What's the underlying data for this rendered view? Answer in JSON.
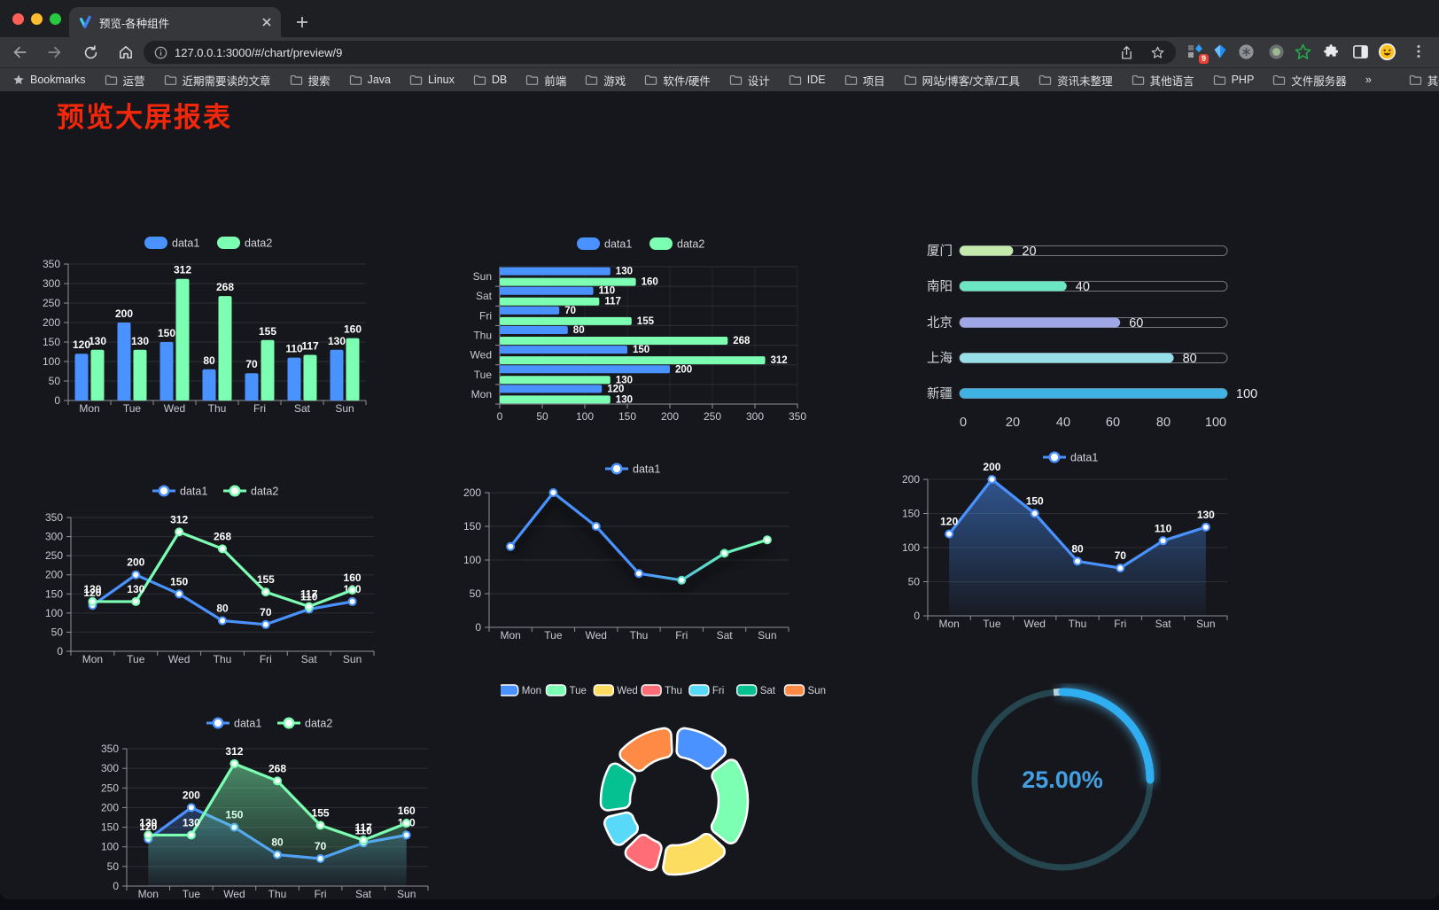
{
  "browser": {
    "traffic_lights": [
      "#ff5f57",
      "#febc2e",
      "#28c840"
    ],
    "tab": {
      "title": "预览-各种组件"
    },
    "url": "127.0.0.1:3000/#/chart/preview/9",
    "extensions_badge": "9",
    "bookmarks": [
      {
        "icon": "star",
        "label": "Bookmarks"
      },
      {
        "icon": "folder",
        "label": "运营"
      },
      {
        "icon": "folder",
        "label": "近期需要读的文章"
      },
      {
        "icon": "folder",
        "label": "搜索"
      },
      {
        "icon": "folder",
        "label": "Java"
      },
      {
        "icon": "folder",
        "label": "Linux"
      },
      {
        "icon": "folder",
        "label": "DB"
      },
      {
        "icon": "folder",
        "label": "前端"
      },
      {
        "icon": "folder",
        "label": "游戏"
      },
      {
        "icon": "folder",
        "label": "软件/硬件"
      },
      {
        "icon": "folder",
        "label": "设计"
      },
      {
        "icon": "folder",
        "label": "IDE"
      },
      {
        "icon": "folder",
        "label": "项目"
      },
      {
        "icon": "folder",
        "label": "网站/博客/文章/工具"
      },
      {
        "icon": "folder",
        "label": "资讯未整理"
      },
      {
        "icon": "folder",
        "label": "其他语言"
      },
      {
        "icon": "folder",
        "label": "PHP"
      },
      {
        "icon": "folder",
        "label": "文件服务器"
      },
      {
        "icon": "none",
        "label": "»"
      },
      {
        "icon": "folder",
        "label": "其他书签",
        "separator_before": true
      }
    ]
  },
  "page": {
    "title": "预览大屏报表",
    "title_color": "#f4270b"
  },
  "chart_data": [
    {
      "type": "bar",
      "legend_position": "top",
      "grid": true,
      "categories": [
        "Mon",
        "Tue",
        "Wed",
        "Thu",
        "Fri",
        "Sat",
        "Sun"
      ],
      "series": [
        {
          "name": "data1",
          "color": "#4992ff",
          "values": [
            120,
            200,
            150,
            80,
            70,
            110,
            130
          ]
        },
        {
          "name": "data2",
          "color": "#7cffb2",
          "values": [
            130,
            130,
            312,
            268,
            155,
            117,
            160
          ]
        }
      ],
      "ylim": [
        0,
        350
      ],
      "ytick_step": 50
    },
    {
      "type": "bar-horizontal",
      "legend_position": "top",
      "categories": [
        "Mon",
        "Tue",
        "Wed",
        "Thu",
        "Fri",
        "Sat",
        "Sun"
      ],
      "series": [
        {
          "name": "data1",
          "color": "#4992ff",
          "values": [
            120,
            200,
            150,
            80,
            70,
            110,
            130
          ]
        },
        {
          "name": "data2",
          "color": "#7cffb2",
          "values": [
            130,
            130,
            312,
            268,
            155,
            117,
            160
          ]
        }
      ],
      "xlim": [
        0,
        350
      ],
      "xtick_step": 50
    },
    {
      "type": "progress-bars",
      "items": [
        {
          "label": "厦门",
          "value": 20,
          "color": "#c4ebad"
        },
        {
          "label": "南阳",
          "value": 40,
          "color": "#6be6c1"
        },
        {
          "label": "北京",
          "value": 60,
          "color": "#a0a7e6"
        },
        {
          "label": "上海",
          "value": 80,
          "color": "#96dee8"
        },
        {
          "label": "新疆",
          "value": 100,
          "color": "#3fb1e3"
        }
      ],
      "xticks": [
        0,
        20,
        40,
        60,
        80,
        100
      ],
      "xlim": [
        0,
        100
      ]
    },
    {
      "type": "line",
      "legend_position": "top",
      "value_labels": true,
      "categories": [
        "Mon",
        "Tue",
        "Wed",
        "Thu",
        "Fri",
        "Sat",
        "Sun"
      ],
      "series": [
        {
          "name": "data1",
          "color": "#4992ff",
          "values": [
            120,
            200,
            150,
            80,
            70,
            110,
            130
          ]
        },
        {
          "name": "data2",
          "color": "#7cffb2",
          "values": [
            130,
            130,
            312,
            268,
            155,
            117,
            160
          ]
        }
      ],
      "ylim": [
        0,
        350
      ],
      "ytick_step": 50
    },
    {
      "type": "line",
      "legend_position": "top",
      "value_labels": false,
      "categories": [
        "Mon",
        "Tue",
        "Wed",
        "Thu",
        "Fri",
        "Sat",
        "Sun"
      ],
      "series": [
        {
          "name": "data1",
          "color": "#4992ff",
          "color_end": "#7cffb2",
          "values": [
            120,
            200,
            150,
            80,
            70,
            110,
            130
          ]
        }
      ],
      "ylim": [
        0,
        200
      ],
      "ytick_step": 50
    },
    {
      "type": "area",
      "legend_position": "top",
      "value_labels": true,
      "categories": [
        "Mon",
        "Tue",
        "Wed",
        "Thu",
        "Fri",
        "Sat",
        "Sun"
      ],
      "series": [
        {
          "name": "data1",
          "color": "#4992ff",
          "values": [
            120,
            200,
            150,
            80,
            70,
            110,
            130
          ]
        }
      ],
      "ylim": [
        0,
        200
      ],
      "ytick_step": 50
    },
    {
      "type": "area",
      "legend_position": "top",
      "value_labels": true,
      "categories": [
        "Mon",
        "Tue",
        "Wed",
        "Thu",
        "Fri",
        "Sat",
        "Sun"
      ],
      "series": [
        {
          "name": "data1",
          "color": "#4992ff",
          "values": [
            120,
            200,
            150,
            80,
            70,
            110,
            130
          ]
        },
        {
          "name": "data2",
          "color": "#7cffb2",
          "values": [
            130,
            130,
            312,
            268,
            155,
            117,
            160
          ]
        }
      ],
      "ylim": [
        0,
        350
      ],
      "ytick_step": 50
    },
    {
      "type": "pie",
      "shape": "donut",
      "legend_position": "top",
      "categories": [
        "Mon",
        "Tue",
        "Wed",
        "Thu",
        "Fri",
        "Sat",
        "Sun"
      ],
      "values": [
        120,
        200,
        150,
        80,
        70,
        110,
        130
      ],
      "colors": [
        "#4992ff",
        "#7cffb2",
        "#fddd60",
        "#ff6e76",
        "#58d9f9",
        "#05c091",
        "#ff8a45"
      ]
    },
    {
      "type": "gauge",
      "value": 25,
      "min": 0,
      "max": 100,
      "label": "25.00%",
      "color": "#30aef2",
      "track_color": "#25454f"
    }
  ]
}
